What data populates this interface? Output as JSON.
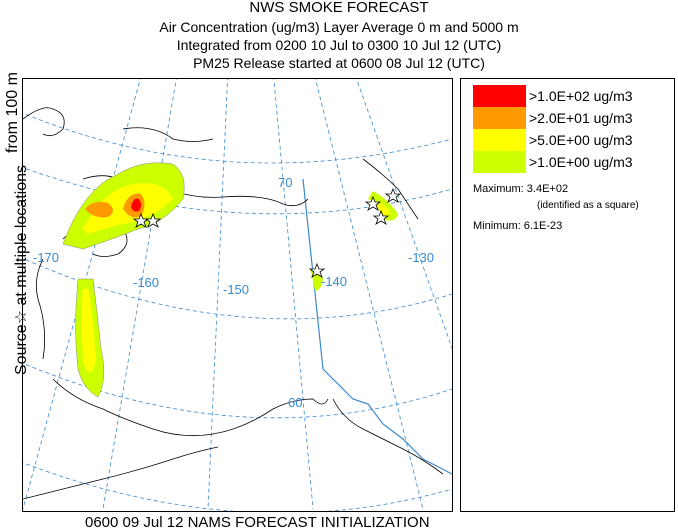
{
  "header": {
    "title": "NWS SMOKE FORECAST",
    "line2": "Air Concentration (ug/m3) Layer Average    0 m and  5000 m",
    "line3": "Integrated from 0200 10 Jul to 0300 10 Jul 12 (UTC)",
    "line4": "PM25 Release started at 0600 08 Jul 12 (UTC)"
  },
  "side_label": {
    "main": "Source☆ at multiple locations",
    "top": "from   100 m"
  },
  "footer": "0600 09 Jul 12 NAMS FORECAST INITIALIZATION",
  "map": {
    "latitude_labels": [
      "70",
      "60"
    ],
    "longitude_labels": [
      "-170",
      "-160",
      "-150",
      "-140",
      "-130"
    ],
    "colors": {
      "grid": "#3a8ad0",
      "coast": "#000000",
      "border": "#3a8ad0"
    }
  },
  "legend": {
    "entries": [
      {
        "label": ">1.0E+02 ug/m3",
        "color": "#ff0000"
      },
      {
        "label": ">2.0E+01 ug/m3",
        "color": "#ff9900"
      },
      {
        "label": ">5.0E+00 ug/m3",
        "color": "#ffff00"
      },
      {
        "label": ">1.0E+00 ug/m3",
        "color": "#ccff00"
      }
    ],
    "maximum": "Maximum: 3.4E+02",
    "maximum_note": "(identified as a square)",
    "minimum": "Minimum: 6.1E-23"
  }
}
